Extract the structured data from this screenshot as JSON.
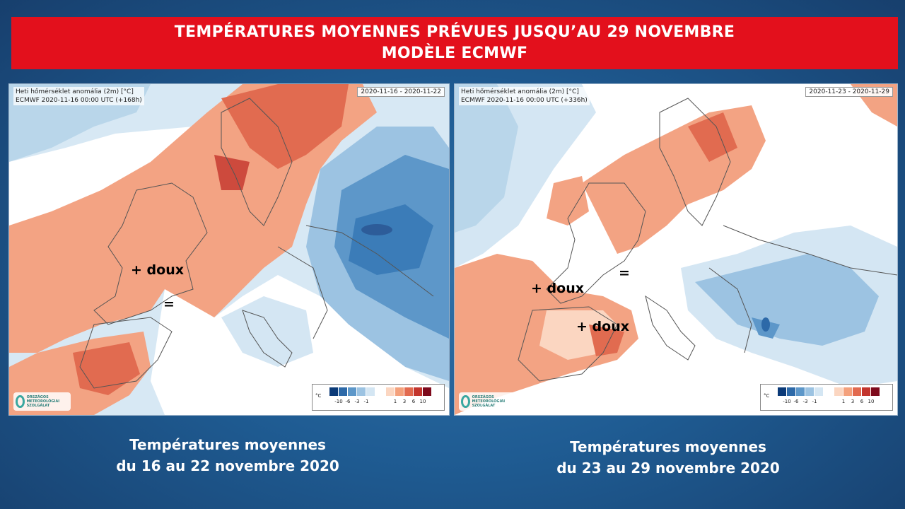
{
  "banner": {
    "line1": "TEMPÉRATURES MOYENNES PRÉVUES JUSQU’AU 29 NOVEMBRE",
    "line2": "MODÈLE ECMWF"
  },
  "maps": [
    {
      "title_line1": "Heti hőmérséklet anomália (2m) [°C]",
      "title_line2": "ECMWF 2020-11-16 00:00 UTC (+168h)",
      "date_range": "2020-11-16 - 2020-11-22",
      "annotations": [
        "+ doux",
        "="
      ],
      "caption_line1": "Températures moyennes",
      "caption_line2": "du 16 au 22 novembre 2020"
    },
    {
      "title_line1": "Heti hőmérséklet anomália (2m) [°C]",
      "title_line2": "ECMWF 2020-11-16 00:00 UTC (+336h)",
      "date_range": "2020-11-23 - 2020-11-29",
      "annotations": [
        "=",
        "+ doux",
        "+ doux"
      ],
      "caption_line1": "Températures moyennes",
      "caption_line2": "du 23 au 29 novembre 2020"
    }
  ],
  "legend": {
    "unit": "°C",
    "cold_colors": [
      "#0b3a78",
      "#2d69a8",
      "#5d97c9",
      "#9cc3e2",
      "#d4e6f3"
    ],
    "warm_colors": [
      "#fbd6c1",
      "#f4a17c",
      "#e26a4f",
      "#c3352d",
      "#7e0a1c"
    ],
    "cold_ticks": [
      "-10",
      "-6",
      "-3",
      "-1"
    ],
    "warm_ticks": [
      "1",
      "3",
      "6",
      "10"
    ]
  },
  "logo": {
    "text": "ORSZÁGOS METEOROLÓGIAI SZOLGÁLAT",
    "icon": "omsz-logo-icon"
  }
}
